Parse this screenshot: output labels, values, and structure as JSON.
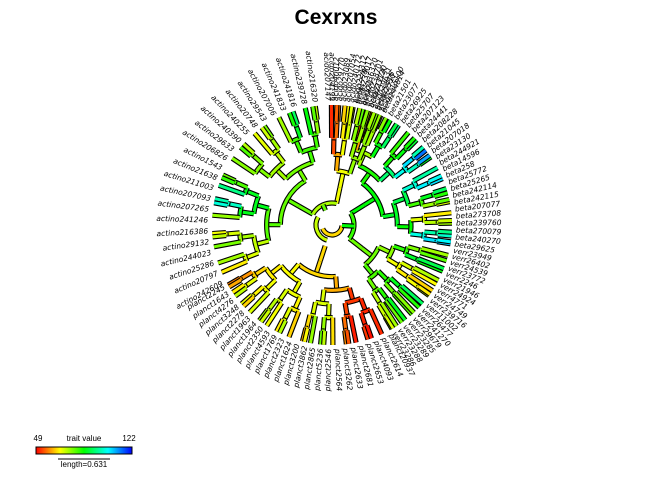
{
  "chart_data": {
    "type": "phylogenetic-tree",
    "layout": "fan",
    "title": "Cexrxns",
    "legend": {
      "label": "trait value",
      "min": 49,
      "max": 122,
      "min_label": "49",
      "max_label": "122",
      "length_label": "length=0.631",
      "placement": "bottom-left",
      "colors": [
        "#ff0000",
        "#ffff00",
        "#00ff00",
        "#00ffff",
        "#0000ff"
      ]
    },
    "clades": [
      {
        "name": "beta",
        "tips": [
          {
            "label": "beta29625",
            "value": 108
          },
          {
            "label": "beta240270",
            "value": 104
          },
          {
            "label": "beta270079",
            "value": 100
          },
          {
            "label": "beta239760",
            "value": 95
          },
          {
            "label": "beta273708",
            "value": 74
          },
          {
            "label": "beta207077",
            "value": 71
          },
          {
            "label": "beta242115",
            "value": 66
          },
          {
            "label": "beta242114",
            "value": 70
          },
          {
            "label": "beta25265",
            "value": 79
          },
          {
            "label": "beta25772",
            "value": 83
          },
          {
            "label": "beta258",
            "value": 92
          },
          {
            "label": "beta14596",
            "value": 106
          },
          {
            "label": "beta244921",
            "value": 103
          },
          {
            "label": "beta23130",
            "value": 97
          },
          {
            "label": "beta207018",
            "value": 88
          },
          {
            "label": "beta21045",
            "value": 110
          },
          {
            "label": "beta208228",
            "value": 114
          },
          {
            "label": "beta24441",
            "value": 98
          },
          {
            "label": "beta207123",
            "value": 89
          },
          {
            "label": "beta25707",
            "value": 84
          },
          {
            "label": "beta26925",
            "value": 82
          },
          {
            "label": "beta23077",
            "value": 95
          },
          {
            "label": "beta21501",
            "value": 90
          },
          {
            "label": "beta244814",
            "value": 86
          },
          {
            "label": "beta25416",
            "value": 76
          },
          {
            "label": "beta21274",
            "value": 68
          },
          {
            "label": "beta23",
            "value": 62
          },
          {
            "label": "beta1774",
            "value": 56
          }
        ]
      },
      {
        "name": "verr",
        "tips": [
          {
            "label": "verr23286",
            "value": 72
          },
          {
            "label": "verr23288",
            "value": 70
          },
          {
            "label": "verr23289",
            "value": 74
          },
          {
            "label": "verr23285",
            "value": 78
          },
          {
            "label": "verr29679",
            "value": 88
          },
          {
            "label": "verr241270",
            "value": 80
          },
          {
            "label": "verr26477",
            "value": 76
          },
          {
            "label": "verr11002",
            "value": 83
          },
          {
            "label": "verr239716",
            "value": 92
          },
          {
            "label": "verr24749",
            "value": 70
          },
          {
            "label": "verr4771",
            "value": 66
          },
          {
            "label": "verr24924",
            "value": 64
          },
          {
            "label": "verr21946",
            "value": 67
          },
          {
            "label": "verr2246",
            "value": 73
          },
          {
            "label": "verr23772",
            "value": 86
          },
          {
            "label": "verr24539",
            "value": 91
          },
          {
            "label": "verr26402",
            "value": 79
          },
          {
            "label": "verr23949",
            "value": 74
          }
        ]
      },
      {
        "name": "planct",
        "tips": [
          {
            "label": "planct2245",
            "value": 58
          },
          {
            "label": "planct1643",
            "value": 61
          },
          {
            "label": "planct4276",
            "value": 66
          },
          {
            "label": "planct3248",
            "value": 72
          },
          {
            "label": "planct2278",
            "value": 69
          },
          {
            "label": "planct1963",
            "value": 64
          },
          {
            "label": "planct1964",
            "value": 70
          },
          {
            "label": "planct2350",
            "value": 74
          },
          {
            "label": "planct4593",
            "value": 71
          },
          {
            "label": "planct1769",
            "value": 68
          },
          {
            "label": "planct2323",
            "value": 66
          },
          {
            "label": "planct1624",
            "value": 73
          },
          {
            "label": "planct3200",
            "value": 64
          },
          {
            "label": "planct3862",
            "value": 62
          },
          {
            "label": "planct2865",
            "value": 67
          },
          {
            "label": "planct5236",
            "value": 75
          },
          {
            "label": "planct2546",
            "value": 78
          },
          {
            "label": "planct2564",
            "value": 72
          },
          {
            "label": "planct3262",
            "value": 65
          },
          {
            "label": "planct2633",
            "value": 59
          },
          {
            "label": "planct2681",
            "value": 55
          },
          {
            "label": "planct2653",
            "value": 51
          },
          {
            "label": "planct4093",
            "value": 53
          },
          {
            "label": "planct2614",
            "value": 50
          },
          {
            "label": "planct20937",
            "value": 52
          }
        ]
      },
      {
        "name": "actino",
        "tips": [
          {
            "label": "actino216320",
            "value": 72
          },
          {
            "label": "actino239728",
            "value": 79
          },
          {
            "label": "actino241816",
            "value": 86
          },
          {
            "label": "actino241833",
            "value": 92
          },
          {
            "label": "actino207006",
            "value": 84
          },
          {
            "label": "actino29543",
            "value": 74
          },
          {
            "label": "actino20748",
            "value": 77
          },
          {
            "label": "actino240255",
            "value": 71
          },
          {
            "label": "actino240390",
            "value": 69
          },
          {
            "label": "actino29633",
            "value": 73
          },
          {
            "label": "actino206826",
            "value": 80
          },
          {
            "label": "actino1543",
            "value": 76
          },
          {
            "label": "actino21638",
            "value": 78
          },
          {
            "label": "actino211003",
            "value": 82
          },
          {
            "label": "actino207093",
            "value": 95
          },
          {
            "label": "actino207265",
            "value": 98
          },
          {
            "label": "actino241246",
            "value": 101
          },
          {
            "label": "actino216386",
            "value": 75
          },
          {
            "label": "actino29132",
            "value": 68
          },
          {
            "label": "actino244023",
            "value": 72
          },
          {
            "label": "actino25286",
            "value": 77
          },
          {
            "label": "actino20797",
            "value": 74
          },
          {
            "label": "actino242609",
            "value": 66
          }
        ]
      },
      {
        "name": "acido",
        "tips": [
          {
            "label": "acido215100",
            "value": 73
          },
          {
            "label": "acido2550",
            "value": 75
          },
          {
            "label": "acido29631",
            "value": 77
          },
          {
            "label": "acido23120",
            "value": 74
          },
          {
            "label": "acido238701",
            "value": 72
          },
          {
            "label": "acido236320",
            "value": 76
          },
          {
            "label": "acido239017",
            "value": 79
          },
          {
            "label": "acido224312",
            "value": 73
          },
          {
            "label": "acido240172",
            "value": 71
          },
          {
            "label": "acido207054",
            "value": 70
          },
          {
            "label": "acido23089",
            "value": 68
          },
          {
            "label": "acido29770",
            "value": 64
          },
          {
            "label": "acido40012",
            "value": 58
          },
          {
            "label": "acido204199",
            "value": 56
          },
          {
            "label": "acido207147",
            "value": 52
          }
        ]
      }
    ]
  }
}
